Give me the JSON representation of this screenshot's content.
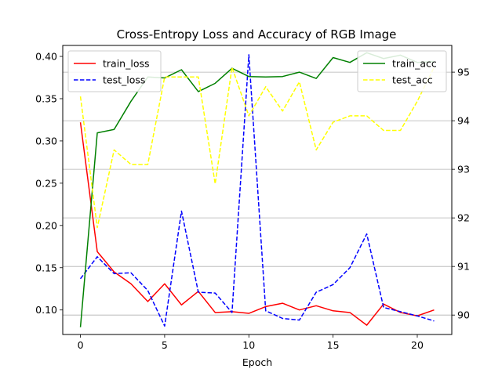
{
  "chart_data": {
    "type": "line",
    "title": "Cross-Entropy Loss and Accuracy of RGB Image",
    "xlabel": "Epoch",
    "x": [
      0,
      1,
      2,
      3,
      4,
      5,
      6,
      7,
      8,
      9,
      10,
      11,
      12,
      13,
      14,
      15,
      16,
      17,
      18,
      19,
      20,
      21
    ],
    "xlim": [
      -1.05,
      22.05
    ],
    "xticks": [
      0,
      5,
      10,
      15,
      20
    ],
    "left_axis": {
      "ylim": [
        0.071,
        0.413
      ],
      "yticks": [
        0.1,
        0.15,
        0.2,
        0.25,
        0.3,
        0.35,
        0.4
      ],
      "ytick_labels": [
        "0.10",
        "0.15",
        "0.20",
        "0.25",
        "0.30",
        "0.35",
        "0.40"
      ],
      "series": [
        {
          "name": "train_loss",
          "color": "#ff0000",
          "style": "solid",
          "values": [
            0.322,
            0.169,
            0.145,
            0.131,
            0.11,
            0.131,
            0.106,
            0.122,
            0.097,
            0.098,
            0.096,
            0.104,
            0.108,
            0.1,
            0.105,
            0.099,
            0.097,
            0.082,
            0.107,
            0.097,
            0.093,
            0.1
          ]
        },
        {
          "name": "test_loss",
          "color": "#0000ff",
          "style": "dashed",
          "values": [
            0.137,
            0.163,
            0.143,
            0.144,
            0.123,
            0.081,
            0.217,
            0.121,
            0.12,
            0.097,
            0.402,
            0.099,
            0.09,
            0.088,
            0.121,
            0.13,
            0.15,
            0.19,
            0.103,
            0.098,
            0.093,
            0.087
          ]
        }
      ],
      "legend_position": "upper left"
    },
    "right_axis": {
      "ylim": [
        89.6,
        95.55
      ],
      "yticks": [
        90,
        91,
        92,
        93,
        94,
        95
      ],
      "ytick_labels": [
        "90",
        "91",
        "92",
        "93",
        "94",
        "95"
      ],
      "grid": true,
      "series": [
        {
          "name": "train_acc",
          "color": "#008000",
          "style": "solid",
          "values": [
            89.75,
            93.75,
            93.82,
            94.4,
            94.9,
            94.88,
            95.05,
            94.6,
            94.77,
            95.08,
            94.91,
            94.9,
            94.91,
            95.0,
            94.87,
            95.3,
            95.2,
            95.4,
            95.28,
            95.35,
            95.2,
            95.22
          ]
        },
        {
          "name": "test_acc",
          "color": "#ffff00",
          "style": "dashed",
          "values": [
            94.5,
            91.8,
            93.4,
            93.1,
            93.1,
            94.9,
            94.9,
            94.9,
            92.7,
            95.1,
            94.1,
            94.7,
            94.2,
            94.8,
            93.4,
            93.97,
            94.1,
            94.1,
            93.8,
            93.8,
            94.4,
            95.1
          ]
        }
      ],
      "legend_position": "upper right"
    }
  }
}
